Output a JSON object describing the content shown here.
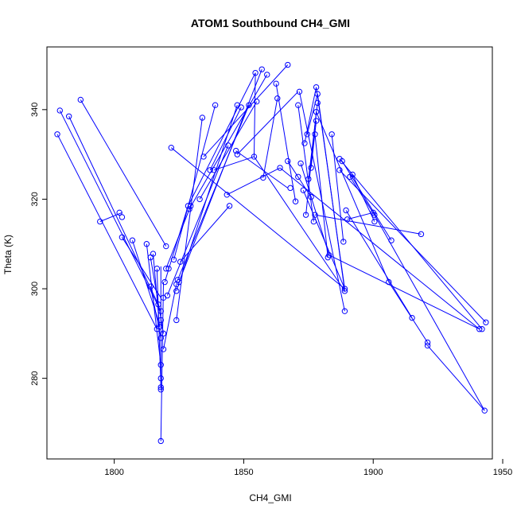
{
  "chart_data": {
    "type": "scatter",
    "title": "ATOM1 Southbound CH4_GMI",
    "xlabel": "CH4_GMI",
    "ylabel": "Theta (K)",
    "xlim": [
      1774,
      1946
    ],
    "ylim": [
      262,
      354
    ],
    "x_ticks": [
      1800,
      1850,
      1900,
      1950
    ],
    "y_ticks": [
      280,
      300,
      320,
      340
    ],
    "grid": false,
    "legend": "none",
    "color": "#0000ff",
    "marker": "open-circle",
    "connect_points": true,
    "points": [
      [
        1778,
        334.5
      ],
      [
        1779,
        339.8
      ],
      [
        1782.5,
        338.5
      ],
      [
        1787,
        342.2
      ],
      [
        1794.5,
        315
      ],
      [
        1802,
        317
      ],
      [
        1803,
        316
      ],
      [
        1803,
        311.5
      ],
      [
        1807,
        310.8
      ],
      [
        1812.5,
        310
      ],
      [
        1814,
        307
      ],
      [
        1814,
        300.5
      ],
      [
        1815,
        307.8
      ],
      [
        1816.5,
        291
      ],
      [
        1816.5,
        304.5
      ],
      [
        1817,
        296.5
      ],
      [
        1817.5,
        291.5
      ],
      [
        1818,
        295
      ],
      [
        1818,
        293
      ],
      [
        1818,
        289
      ],
      [
        1818,
        283
      ],
      [
        1818,
        280
      ],
      [
        1818,
        278
      ],
      [
        1818,
        277.5
      ],
      [
        1818,
        266
      ],
      [
        1819,
        298
      ],
      [
        1819,
        290
      ],
      [
        1819,
        286.5
      ],
      [
        1819.5,
        301.5
      ],
      [
        1820,
        309.5
      ],
      [
        1820,
        304.5
      ],
      [
        1820.5,
        298.5
      ],
      [
        1821,
        304.5
      ],
      [
        1822,
        331.5
      ],
      [
        1823,
        306.5
      ],
      [
        1824,
        293
      ],
      [
        1824,
        299.5
      ],
      [
        1824,
        301
      ],
      [
        1824.5,
        302
      ],
      [
        1825,
        301.5
      ],
      [
        1825.5,
        306
      ],
      [
        1828.5,
        318.5
      ],
      [
        1829,
        317.8
      ],
      [
        1829.5,
        318.5
      ],
      [
        1833,
        320
      ],
      [
        1834,
        338.2
      ],
      [
        1834.5,
        329.5
      ],
      [
        1837,
        326.5
      ],
      [
        1838.5,
        326.5
      ],
      [
        1839,
        341
      ],
      [
        1843.5,
        321
      ],
      [
        1844,
        332
      ],
      [
        1844.5,
        318.5
      ],
      [
        1847,
        330.8
      ],
      [
        1847.5,
        330
      ],
      [
        1847.5,
        341
      ],
      [
        1849,
        340.5
      ],
      [
        1852,
        341
      ],
      [
        1854,
        329.5
      ],
      [
        1854.5,
        348.2
      ],
      [
        1855,
        341.8
      ],
      [
        1857,
        349
      ],
      [
        1857.5,
        324.8
      ],
      [
        1859,
        347.8
      ],
      [
        1862.5,
        345.8
      ],
      [
        1863,
        342.5
      ],
      [
        1864,
        327
      ],
      [
        1867,
        350
      ],
      [
        1867,
        328.5
      ],
      [
        1868,
        322.5
      ],
      [
        1870,
        319.5
      ],
      [
        1871,
        341
      ],
      [
        1871,
        325
      ],
      [
        1871.5,
        344
      ],
      [
        1872,
        328
      ],
      [
        1873,
        322
      ],
      [
        1873.5,
        332.5
      ],
      [
        1874,
        316.5
      ],
      [
        1874.5,
        334.5
      ],
      [
        1875,
        324.5
      ],
      [
        1876,
        327
      ],
      [
        1876,
        320.5
      ],
      [
        1877,
        315
      ],
      [
        1877.5,
        334.5
      ],
      [
        1877.5,
        316.5
      ],
      [
        1878,
        345
      ],
      [
        1878,
        339.5
      ],
      [
        1878,
        337.5
      ],
      [
        1878.5,
        343.5
      ],
      [
        1878.5,
        341.5
      ],
      [
        1882.5,
        307
      ],
      [
        1883,
        307.5
      ],
      [
        1884,
        334.5
      ],
      [
        1887,
        329
      ],
      [
        1887,
        326.5
      ],
      [
        1888,
        328.5
      ],
      [
        1888.5,
        310.5
      ],
      [
        1889,
        300
      ],
      [
        1889,
        299.5
      ],
      [
        1889,
        295
      ],
      [
        1889.5,
        317.5
      ],
      [
        1890,
        315.5
      ],
      [
        1891,
        325
      ],
      [
        1892,
        325.5
      ],
      [
        1900,
        317
      ],
      [
        1900.5,
        316.5
      ],
      [
        1900.5,
        315
      ],
      [
        1906,
        301.5
      ],
      [
        1907,
        310.8
      ],
      [
        1915,
        293.5
      ],
      [
        1918.5,
        312.2
      ],
      [
        1921,
        288
      ],
      [
        1921,
        287.3
      ],
      [
        1941,
        291
      ],
      [
        1942,
        291
      ],
      [
        1943,
        272.8
      ],
      [
        1943.5,
        292.5
      ]
    ],
    "segments": [
      [
        1778,
        334.5,
        1816.5,
        291
      ],
      [
        1779,
        339.8,
        1818,
        295
      ],
      [
        1782.5,
        338.5,
        1817,
        296.5
      ],
      [
        1787,
        342.2,
        1820,
        309.5
      ],
      [
        1794.5,
        315,
        1803,
        317
      ],
      [
        1803,
        311.5,
        1818,
        298
      ],
      [
        1807,
        310.8,
        1817,
        293
      ],
      [
        1812.5,
        310,
        1818,
        283
      ],
      [
        1814,
        307,
        1819,
        290
      ],
      [
        1814,
        300.5,
        1818,
        289
      ],
      [
        1815,
        307.8,
        1817.5,
        291.5
      ],
      [
        1816.5,
        304.5,
        1818,
        278
      ],
      [
        1818,
        266,
        1819,
        301.5
      ],
      [
        1818,
        277.5,
        1818,
        305
      ],
      [
        1819,
        286.5,
        1824,
        301
      ],
      [
        1819.5,
        301.5,
        1828.5,
        318.5
      ],
      [
        1820,
        304.5,
        1829.5,
        318.5
      ],
      [
        1820.5,
        298.5,
        1844,
        332
      ],
      [
        1823,
        306.5,
        1839,
        341
      ],
      [
        1824,
        293,
        1834,
        338.2
      ],
      [
        1824,
        299.5,
        1847.5,
        341
      ],
      [
        1824.5,
        302,
        1852,
        341
      ],
      [
        1825,
        301.5,
        1857,
        349
      ],
      [
        1825.5,
        306,
        1844.5,
        318.5
      ],
      [
        1828.5,
        318.5,
        1854.5,
        348.2
      ],
      [
        1829,
        317.8,
        1859,
        347.8
      ],
      [
        1833,
        320,
        1855,
        341.8
      ],
      [
        1834.5,
        329.5,
        1867,
        350
      ],
      [
        1837,
        326.5,
        1849,
        340.5
      ],
      [
        1838.5,
        326.5,
        1854,
        329.5
      ],
      [
        1843.5,
        321,
        1864,
        327
      ],
      [
        1847,
        330.8,
        1867,
        322.5
      ],
      [
        1847.5,
        330,
        1871,
        344
      ],
      [
        1854,
        329.5,
        1854.5,
        348.2
      ],
      [
        1857.5,
        324.8,
        1863,
        342.5
      ],
      [
        1862.5,
        345.8,
        1870,
        319.5
      ],
      [
        1822,
        331.5,
        1889,
        300
      ],
      [
        1854,
        329.5,
        1889,
        299.5
      ],
      [
        1867,
        328.5,
        1876,
        320.5
      ],
      [
        1871,
        341,
        1877,
        315
      ],
      [
        1871.5,
        344,
        1889,
        295
      ],
      [
        1872,
        328,
        1883,
        307.5
      ],
      [
        1873,
        322,
        1889,
        300
      ],
      [
        1873.5,
        332.5,
        1878,
        345
      ],
      [
        1874,
        316.5,
        1878,
        339.5
      ],
      [
        1874.5,
        334.5,
        1878.5,
        343.5
      ],
      [
        1875,
        324.5,
        1878.5,
        341.5
      ],
      [
        1876,
        327,
        1878,
        337.5
      ],
      [
        1877.5,
        334.5,
        1882.5,
        307
      ],
      [
        1877.5,
        316.5,
        1918.5,
        312.2
      ],
      [
        1878,
        339.5,
        1906,
        301.5
      ],
      [
        1883,
        307.5,
        1941,
        291
      ],
      [
        1884,
        334.5,
        1888.5,
        310.5
      ],
      [
        1887,
        329,
        1942,
        291
      ],
      [
        1887,
        326.5,
        1943.5,
        292.5
      ],
      [
        1888,
        328.5,
        1907,
        310.8
      ],
      [
        1889.5,
        317.5,
        1915,
        293.5
      ],
      [
        1890,
        315.5,
        1900,
        317
      ],
      [
        1891,
        325,
        1900.5,
        316.5
      ],
      [
        1892,
        325.5,
        1900.5,
        315
      ],
      [
        1900,
        317,
        1943,
        272.8
      ],
      [
        1906,
        301.5,
        1921,
        288
      ],
      [
        1921,
        287.3,
        1943,
        272.8
      ],
      [
        1878,
        345,
        1889,
        300
      ],
      [
        1878.5,
        343.5,
        1889,
        299.5
      ],
      [
        1864,
        327,
        1941,
        291
      ]
    ]
  }
}
